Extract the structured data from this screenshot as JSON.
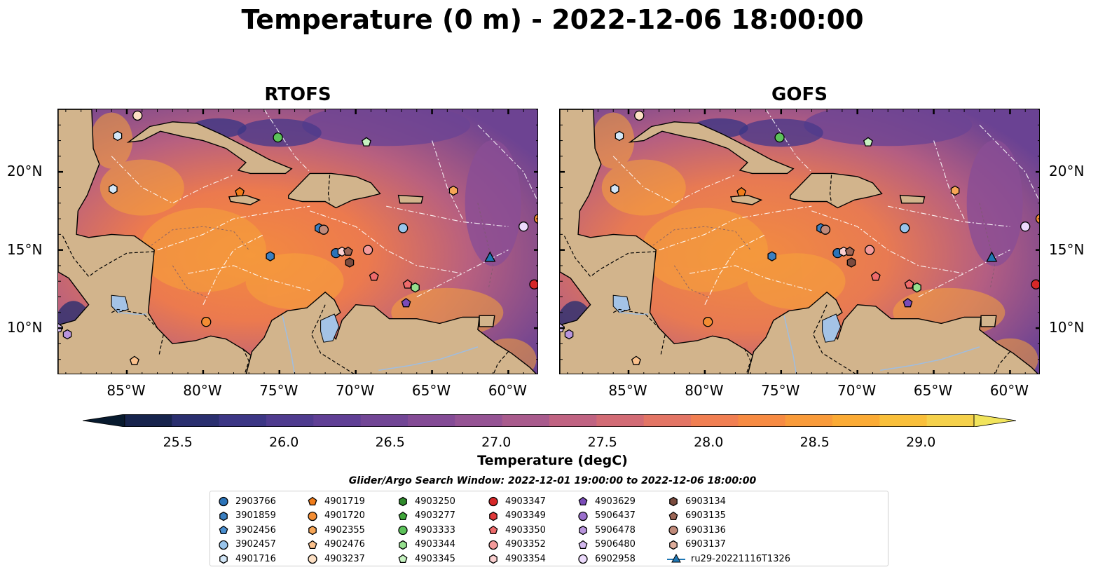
{
  "title": "Temperature (0 m) - 2022-12-06 18:00:00",
  "panels": [
    {
      "name": "RTOFS"
    },
    {
      "name": "GOFS"
    }
  ],
  "map_extent": {
    "lon": [
      -89.5,
      -58.0
    ],
    "lat": [
      7.0,
      24.0
    ]
  },
  "lon_ticks": [
    "85°W",
    "80°W",
    "75°W",
    "70°W",
    "65°W",
    "60°W"
  ],
  "lon_tick_values": [
    -85,
    -80,
    -75,
    -70,
    -65,
    -60
  ],
  "lat_ticks": [
    "20°N",
    "15°N",
    "10°N"
  ],
  "lat_tick_values": [
    20,
    15,
    10
  ],
  "colorbar": {
    "label": "Temperature (degC)",
    "min": 25.25,
    "max": 29.25,
    "ticks": [
      "25.5",
      "26.0",
      "26.5",
      "27.0",
      "27.5",
      "28.0",
      "28.5",
      "29.0"
    ],
    "colors": [
      "#071a2e",
      "#17244d",
      "#2a2f6f",
      "#3c3685",
      "#4f3b8f",
      "#603f95",
      "#724696",
      "#844b96",
      "#955394",
      "#a95b8d",
      "#c06382",
      "#d26b75",
      "#e37565",
      "#f17f52",
      "#f78b43",
      "#f99b3a",
      "#fbab35",
      "#f9bf3a",
      "#f5d14b",
      "#f1e45c"
    ]
  },
  "search_window": "Glider/Argo Search Window: 2022-12-01 19:00:00 to 2022-12-06 18:00:00",
  "legend": [
    {
      "label": "2903766",
      "marker": "circle",
      "color": "#2b73b8"
    },
    {
      "label": "3901859",
      "marker": "hexagon",
      "color": "#3a7fc1"
    },
    {
      "label": "3902456",
      "marker": "pentagon",
      "color": "#4a8fd0"
    },
    {
      "label": "3902457",
      "marker": "circle",
      "color": "#99c5ec"
    },
    {
      "label": "4901716",
      "marker": "hexagon",
      "color": "#d3e7f8"
    },
    {
      "label": "4901719",
      "marker": "pentagon",
      "color": "#f07c1a"
    },
    {
      "label": "4901720",
      "marker": "circle",
      "color": "#f38d33"
    },
    {
      "label": "4902355",
      "marker": "hexagon",
      "color": "#f7a657"
    },
    {
      "label": "4902476",
      "marker": "pentagon",
      "color": "#fbc18c"
    },
    {
      "label": "4903237",
      "marker": "circle",
      "color": "#fde0c4"
    },
    {
      "label": "4903250",
      "marker": "hexagon",
      "color": "#2f8a2b"
    },
    {
      "label": "4903277",
      "marker": "pentagon",
      "color": "#40a63a"
    },
    {
      "label": "4903333",
      "marker": "circle",
      "color": "#5cc25a"
    },
    {
      "label": "4903344",
      "marker": "hexagon",
      "color": "#95e08e"
    },
    {
      "label": "4903345",
      "marker": "pentagon",
      "color": "#c6f2c0"
    },
    {
      "label": "4903347",
      "marker": "circle",
      "color": "#d62728"
    },
    {
      "label": "4903349",
      "marker": "hexagon",
      "color": "#e0393a"
    },
    {
      "label": "4903350",
      "marker": "pentagon",
      "color": "#ee6b6b"
    },
    {
      "label": "4903352",
      "marker": "circle",
      "color": "#f49b9b"
    },
    {
      "label": "4903354",
      "marker": "hexagon",
      "color": "#fbd0d0"
    },
    {
      "label": "4903629",
      "marker": "pentagon",
      "color": "#7a4bb8"
    },
    {
      "label": "5906437",
      "marker": "circle",
      "color": "#9a6fcc"
    },
    {
      "label": "5906478",
      "marker": "hexagon",
      "color": "#b995dd"
    },
    {
      "label": "5906480",
      "marker": "pentagon",
      "color": "#d3b8ee"
    },
    {
      "label": "6902958",
      "marker": "circle",
      "color": "#ecdafc"
    },
    {
      "label": "6903134",
      "marker": "hexagon",
      "color": "#7b4b3e"
    },
    {
      "label": "6903135",
      "marker": "pentagon",
      "color": "#9c6555"
    },
    {
      "label": "6903136",
      "marker": "circle",
      "color": "#c08a7a"
    },
    {
      "label": "6903137",
      "marker": "hexagon",
      "color": "#e0ae9c"
    },
    {
      "label": "ru29-20221116T1326",
      "marker": "triangle-line",
      "color": "#1f77b4"
    }
  ],
  "floats": [
    {
      "label": "4903237",
      "lon": -84.3,
      "lat": 23.6
    },
    {
      "label": "4901716",
      "lon": -85.6,
      "lat": 22.3
    },
    {
      "label": "4903333",
      "lon": -75.1,
      "lat": 22.2
    },
    {
      "label": "4903345",
      "lon": -69.3,
      "lat": 21.9
    },
    {
      "label": "4901716",
      "lon": -85.9,
      "lat": 18.9
    },
    {
      "label": "4901719",
      "lon": -77.6,
      "lat": 18.7
    },
    {
      "label": "4902355",
      "lon": -63.6,
      "lat": 18.8
    },
    {
      "label": "3901859",
      "lon": -72.4,
      "lat": 16.4
    },
    {
      "label": "6903136",
      "lon": -72.1,
      "lat": 16.3
    },
    {
      "label": "3902457",
      "lon": -66.9,
      "lat": 16.4
    },
    {
      "label": "6902958",
      "lon": -59.0,
      "lat": 16.5
    },
    {
      "label": "4901720",
      "lon": -58.0,
      "lat": 17.0
    },
    {
      "label": "3901859",
      "lon": -75.6,
      "lat": 14.6
    },
    {
      "label": "2903766",
      "lon": -71.3,
      "lat": 14.8
    },
    {
      "label": "4903354",
      "lon": -70.9,
      "lat": 14.9
    },
    {
      "label": "6903135",
      "lon": -70.5,
      "lat": 14.9
    },
    {
      "label": "6903134",
      "lon": -70.4,
      "lat": 14.2
    },
    {
      "label": "4903352",
      "lon": -69.2,
      "lat": 15.0
    },
    {
      "label": "4903350",
      "lon": -68.8,
      "lat": 13.3
    },
    {
      "label": "4903350",
      "lon": -66.6,
      "lat": 12.8
    },
    {
      "label": "4903344",
      "lon": -66.1,
      "lat": 12.6
    },
    {
      "label": "4903629",
      "lon": -66.7,
      "lat": 11.6
    },
    {
      "label": "4903347",
      "lon": -58.3,
      "lat": 12.8
    },
    {
      "label": "4901720",
      "lon": -79.8,
      "lat": 10.4
    },
    {
      "label": "5906480",
      "lon": -89.5,
      "lat": 10.0
    },
    {
      "label": "5906478",
      "lon": -88.9,
      "lat": 9.6
    },
    {
      "label": "4902476",
      "lon": -84.5,
      "lat": 7.9
    }
  ],
  "glider": {
    "label": "ru29-20221116T1326",
    "lon": -61.2,
    "lat": 14.5
  }
}
